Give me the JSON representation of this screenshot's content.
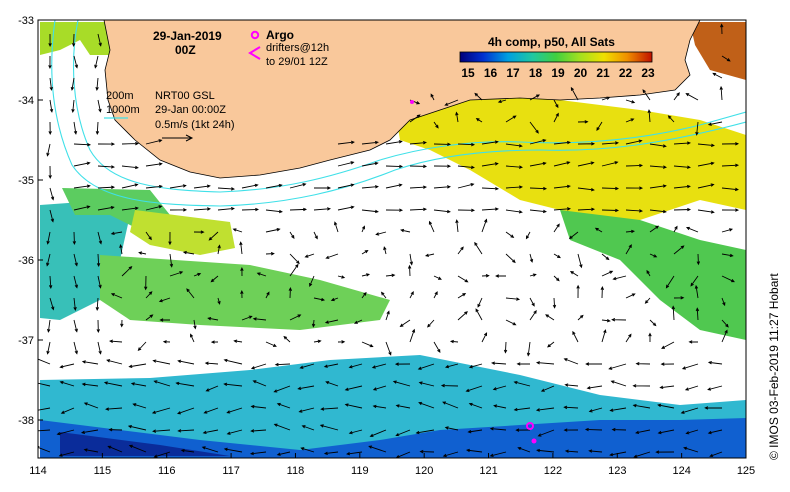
{
  "map": {
    "date": "29-Jan-2019",
    "time": "00Z",
    "legend_argo": "Argo",
    "legend_drifters_line1": "drifters@12h",
    "legend_drifters_line2": "to 29/01 12Z",
    "contour_200": "200m",
    "contour_1000": "1000m",
    "product": "NRT00 GSL",
    "product_time": "29-Jan 00:00Z",
    "scale_label": "0.5m/s (1kt 24h)",
    "colorbar_title": "4h comp, p50, All Sats",
    "colorbar_ticks": [
      "15",
      "16",
      "17",
      "18",
      "19",
      "20",
      "21",
      "22",
      "23"
    ],
    "credit": "© IMOS 03-Feb-2019 11:27 Hobart",
    "lon_ticks": [
      "114",
      "115",
      "116",
      "117",
      "118",
      "119",
      "120",
      "121",
      "122",
      "123",
      "124",
      "125"
    ],
    "lat_ticks": [
      "-33",
      "-34",
      "-35",
      "-36",
      "-37",
      "-38"
    ],
    "colors": {
      "land": "#f9c89b",
      "shelf_contour": "#40e0e8",
      "argo": "#ff00ff",
      "frame": "#000000"
    }
  }
}
